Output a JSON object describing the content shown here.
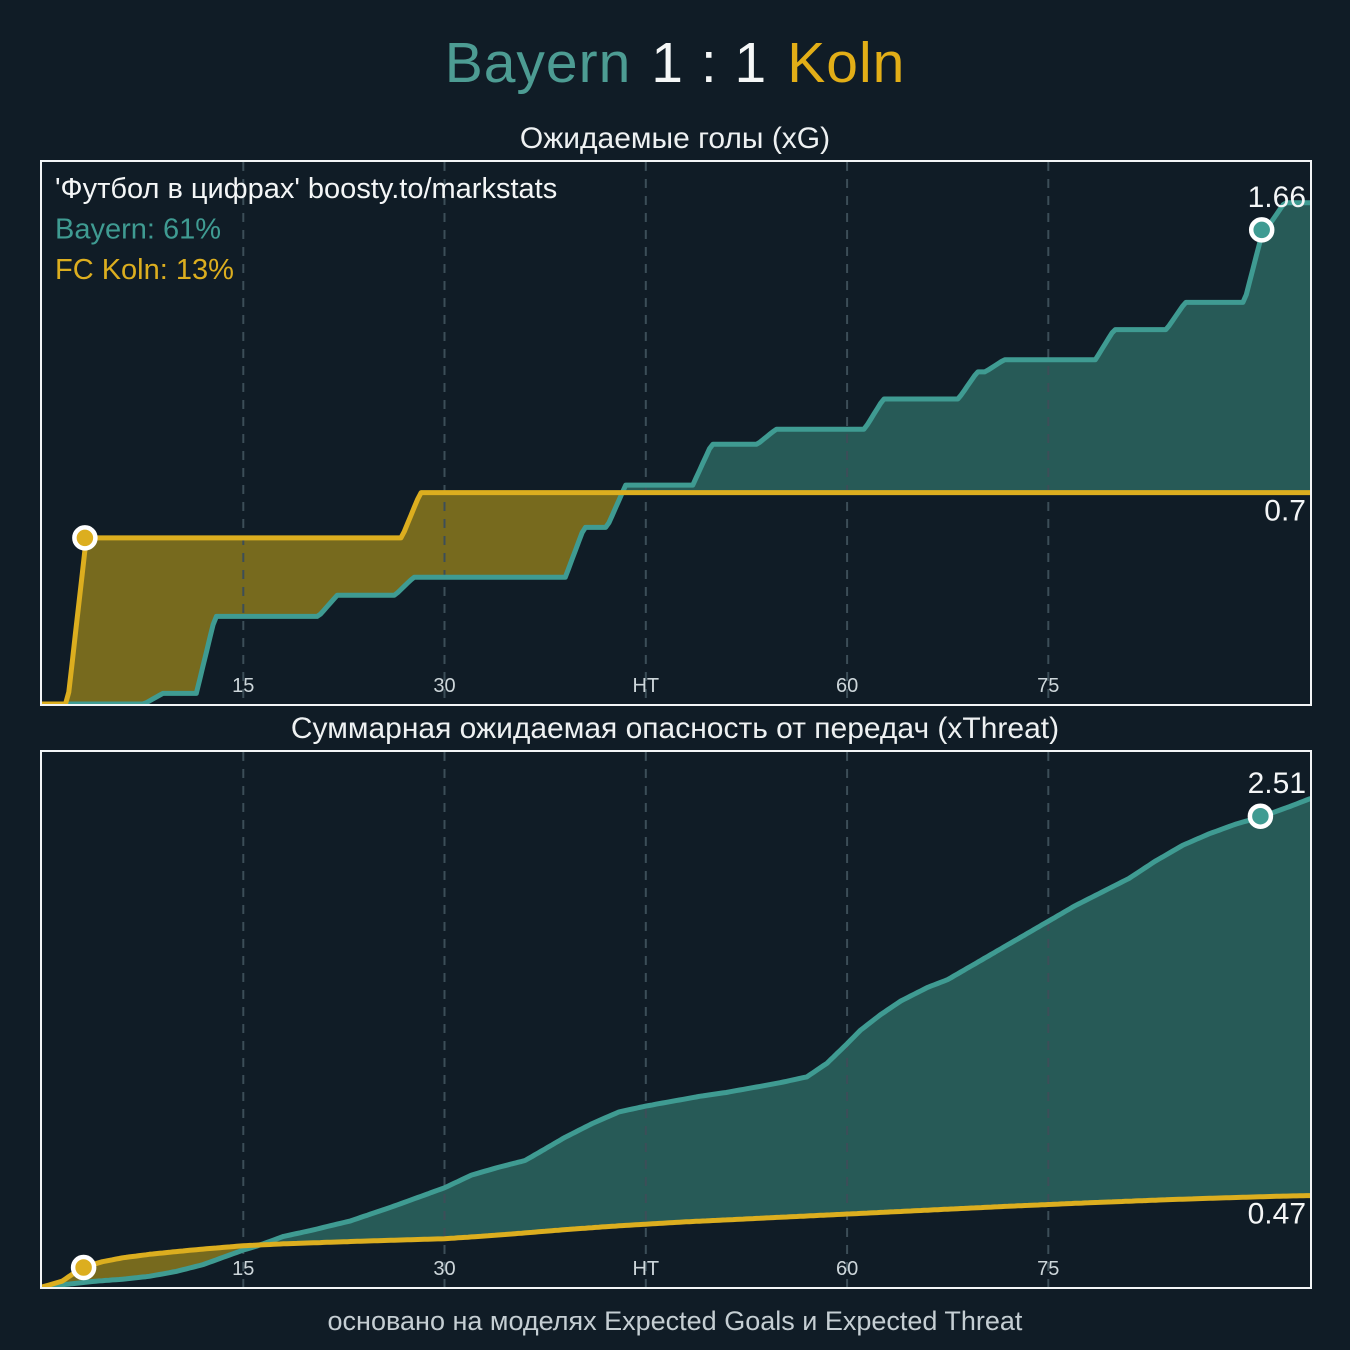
{
  "header": {
    "home_team": "Bayern",
    "score": "1 : 1",
    "away_team": "Koln",
    "home_color": "#4d9c93",
    "away_color": "#e2ae17"
  },
  "footer": {
    "note": "основано на моделях Expected Goals и Expected Threat"
  },
  "colors": {
    "background": "#101c26",
    "panel_border": "#f2f5f6",
    "bayern_line": "#3f9b92",
    "bayern_fill": "#275a57",
    "koln_line": "#dcae1f",
    "koln_fill": "#776a1e",
    "grid": "#3c4e58",
    "tick_label": "#cdd6da",
    "value_label": "#f4f6f7",
    "marker_ring": "#ffffff"
  },
  "chart_data": [
    {
      "type": "area",
      "key": "xg",
      "title": "Ожидаемые голы (xG)",
      "x_range": [
        0,
        94.5
      ],
      "y_range": [
        0,
        1.795
      ],
      "grid": "vertical-dashed",
      "legend_position": "none",
      "x_ticks": [
        {
          "m": 15,
          "label": "15"
        },
        {
          "m": 30,
          "label": "30"
        },
        {
          "m": 45,
          "label": "HT"
        },
        {
          "m": 60,
          "label": "60"
        },
        {
          "m": 75,
          "label": "75"
        }
      ],
      "annotations": [
        {
          "text": "'Футбол в цифрах' boosty.to/markstats",
          "color_key": "value_label"
        },
        {
          "text": "Bayern: 61%",
          "color_key": "bayern_line"
        },
        {
          "text": "FC Koln: 13%",
          "color_key": "koln_line"
        }
      ],
      "series": [
        {
          "name": "Bayern",
          "team": "bayern",
          "mode": "step",
          "end_label": "1.66",
          "end_value": 1.66,
          "marker": {
            "m": 90.9,
            "v": 1.57,
            "position": "end"
          },
          "events": [
            [
              8.3,
              0.035
            ],
            [
              12.2,
              0.29
            ],
            [
              21.3,
              0.36
            ],
            [
              27.0,
              0.42
            ],
            [
              39.7,
              0.585
            ],
            [
              42.8,
              0.725
            ],
            [
              49.2,
              0.86
            ],
            [
              54.0,
              0.91
            ],
            [
              62.0,
              1.01
            ],
            [
              69.0,
              1.1
            ],
            [
              71.0,
              1.14
            ],
            [
              79.2,
              1.24
            ],
            [
              84.5,
              1.33
            ],
            [
              90.3,
              1.57
            ],
            [
              91.9,
              1.66
            ]
          ]
        },
        {
          "name": "FC Koln",
          "team": "koln",
          "mode": "step",
          "end_label": "0.7",
          "end_value": 0.7,
          "marker": {
            "m": 3.2,
            "v": 0.55,
            "position": "start"
          },
          "events": [
            [
              2.6,
              0.55
            ],
            [
              27.5,
              0.7
            ]
          ]
        }
      ]
    },
    {
      "type": "area",
      "key": "xthreat",
      "title": "Суммарная ожидаемая опасность от передач (xThreat)",
      "x_range": [
        0,
        94.5
      ],
      "y_range": [
        0,
        2.75
      ],
      "grid": "vertical-dashed",
      "legend_position": "none",
      "x_ticks": [
        {
          "m": 15,
          "label": "15"
        },
        {
          "m": 30,
          "label": "30"
        },
        {
          "m": 45,
          "label": "HT"
        },
        {
          "m": 60,
          "label": "60"
        },
        {
          "m": 75,
          "label": "75"
        }
      ],
      "annotations": [],
      "series": [
        {
          "name": "Bayern",
          "team": "bayern",
          "mode": "line",
          "end_label": "2.51",
          "end_value": 2.51,
          "marker": {
            "m": 90.8,
            "v": 2.42,
            "position": "end"
          },
          "points": [
            [
              0,
              0
            ],
            [
              2,
              0.015
            ],
            [
              4,
              0.03
            ],
            [
              6,
              0.04
            ],
            [
              8,
              0.055
            ],
            [
              10,
              0.08
            ],
            [
              12,
              0.115
            ],
            [
              14,
              0.165
            ],
            [
              15,
              0.19
            ],
            [
              16,
              0.21
            ],
            [
              17,
              0.235
            ],
            [
              18,
              0.26
            ],
            [
              20,
              0.29
            ],
            [
              23,
              0.34
            ],
            [
              26,
              0.41
            ],
            [
              28,
              0.46
            ],
            [
              30,
              0.51
            ],
            [
              32,
              0.575
            ],
            [
              34,
              0.615
            ],
            [
              36,
              0.65
            ],
            [
              37.5,
              0.71
            ],
            [
              39,
              0.77
            ],
            [
              41,
              0.84
            ],
            [
              43,
              0.9
            ],
            [
              45,
              0.93
            ],
            [
              47,
              0.955
            ],
            [
              49,
              0.98
            ],
            [
              51,
              1.0
            ],
            [
              53,
              1.025
            ],
            [
              55,
              1.05
            ],
            [
              57,
              1.08
            ],
            [
              58.5,
              1.15
            ],
            [
              60,
              1.25
            ],
            [
              61,
              1.32
            ],
            [
              62.5,
              1.4
            ],
            [
              64,
              1.47
            ],
            [
              66,
              1.54
            ],
            [
              67.5,
              1.58
            ],
            [
              69,
              1.64
            ],
            [
              71,
              1.72
            ],
            [
              73,
              1.8
            ],
            [
              75,
              1.88
            ],
            [
              77,
              1.96
            ],
            [
              79,
              2.03
            ],
            [
              81,
              2.1
            ],
            [
              83,
              2.19
            ],
            [
              85,
              2.27
            ],
            [
              87,
              2.33
            ],
            [
              89,
              2.38
            ],
            [
              91,
              2.42
            ],
            [
              93,
              2.47
            ],
            [
              94.5,
              2.51
            ]
          ]
        },
        {
          "name": "FC Koln",
          "team": "koln",
          "mode": "line",
          "end_label": "0.47",
          "end_value": 0.47,
          "marker": {
            "m": 3.1,
            "v": 0.1,
            "position": "start"
          },
          "points": [
            [
              0,
              0
            ],
            [
              1.5,
              0.03
            ],
            [
              3,
              0.1
            ],
            [
              4.5,
              0.13
            ],
            [
              6,
              0.15
            ],
            [
              8,
              0.168
            ],
            [
              10,
              0.182
            ],
            [
              12,
              0.195
            ],
            [
              15,
              0.212
            ],
            [
              18,
              0.222
            ],
            [
              21,
              0.229
            ],
            [
              24,
              0.236
            ],
            [
              27,
              0.242
            ],
            [
              30,
              0.248
            ],
            [
              33,
              0.262
            ],
            [
              36,
              0.278
            ],
            [
              39,
              0.295
            ],
            [
              42,
              0.31
            ],
            [
              45,
              0.323
            ],
            [
              48,
              0.335
            ],
            [
              51,
              0.345
            ],
            [
              54,
              0.355
            ],
            [
              57,
              0.365
            ],
            [
              60,
              0.375
            ],
            [
              63,
              0.385
            ],
            [
              66,
              0.395
            ],
            [
              69,
              0.405
            ],
            [
              72,
              0.415
            ],
            [
              75,
              0.424
            ],
            [
              78,
              0.433
            ],
            [
              81,
              0.441
            ],
            [
              84,
              0.449
            ],
            [
              87,
              0.456
            ],
            [
              90,
              0.462
            ],
            [
              92.5,
              0.467
            ],
            [
              94.5,
              0.47
            ]
          ]
        }
      ]
    }
  ]
}
